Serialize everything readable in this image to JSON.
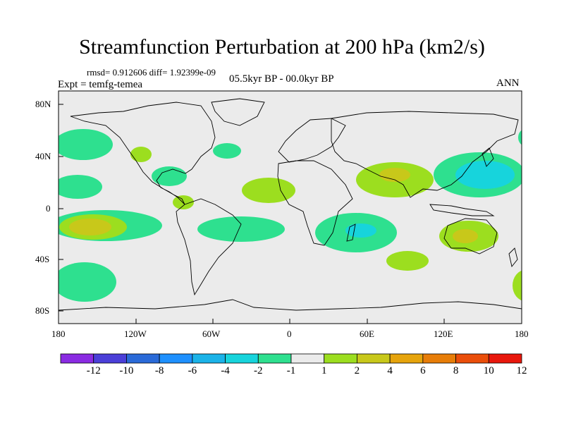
{
  "title": "Streamfunction Perturbation at 200 hPa (km2/s)",
  "stats": "rmsd= 0.912606 diff= 1.92399e-09",
  "experiment": "Expt = temfg-temea",
  "period": "05.5kyr BP - 00.0kyr BP",
  "season": "ANN",
  "lat_labels": [
    "80N",
    "40N",
    "0",
    "40S",
    "80S"
  ],
  "lon_labels": [
    "180",
    "120W",
    "60W",
    "0",
    "60E",
    "120E",
    "180"
  ],
  "colorbar": {
    "labels": [
      "-12",
      "-10",
      "-8",
      "-6",
      "-4",
      "-2",
      "-1",
      "1",
      "2",
      "4",
      "6",
      "8",
      "10",
      "12"
    ],
    "colors": [
      "#8a2be2",
      "#4b3fd8",
      "#2a6ad8",
      "#1e90ff",
      "#1bb3e8",
      "#17d4dc",
      "#2ee08f",
      "#ebebeb",
      "#9cde1f",
      "#c8c81a",
      "#e6a40c",
      "#e77d08",
      "#ea4e0a",
      "#e8170c"
    ]
  },
  "colors": {
    "land_bg": "#ebebeb",
    "teal": "#2ee08f",
    "cyan": "#17d4dc",
    "lime": "#9cde1f",
    "olive": "#c8c81a"
  }
}
